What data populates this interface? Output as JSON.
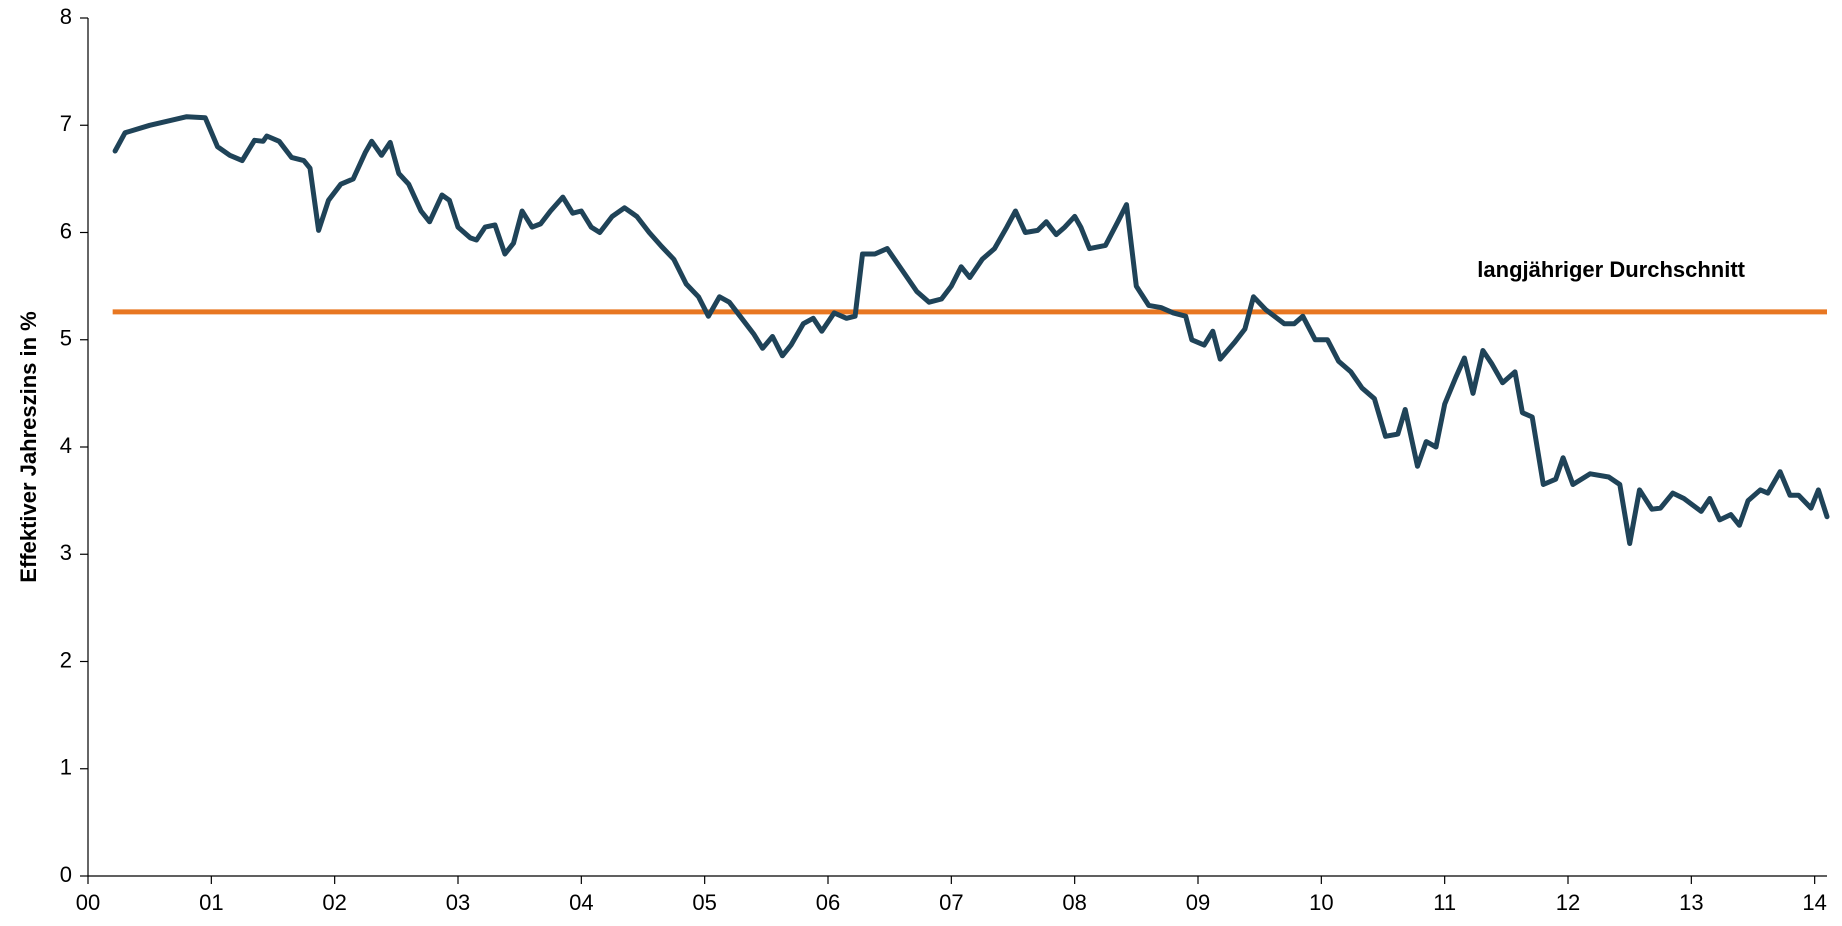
{
  "chart_data": {
    "type": "line",
    "ylabel": "Effektiver Jahreszins in %",
    "xlim": [
      0,
      14.1
    ],
    "ylim": [
      0,
      8
    ],
    "xticks": [
      {
        "value": 0,
        "label": "00"
      },
      {
        "value": 1,
        "label": "01"
      },
      {
        "value": 2,
        "label": "02"
      },
      {
        "value": 3,
        "label": "03"
      },
      {
        "value": 4,
        "label": "04"
      },
      {
        "value": 5,
        "label": "05"
      },
      {
        "value": 6,
        "label": "06"
      },
      {
        "value": 7,
        "label": "07"
      },
      {
        "value": 8,
        "label": "08"
      },
      {
        "value": 9,
        "label": "09"
      },
      {
        "value": 10,
        "label": "10"
      },
      {
        "value": 11,
        "label": "11"
      },
      {
        "value": 12,
        "label": "12"
      },
      {
        "value": 13,
        "label": "13"
      },
      {
        "value": 14,
        "label": "14"
      }
    ],
    "yticks": [
      0,
      1,
      2,
      3,
      4,
      5,
      6,
      7,
      8
    ],
    "grid": false,
    "series": [
      {
        "color": "#1f4358",
        "x": [
          0.22,
          0.3,
          0.5,
          0.8,
          0.95,
          1.05,
          1.15,
          1.25,
          1.35,
          1.42,
          1.45,
          1.55,
          1.65,
          1.75,
          1.8,
          1.87,
          1.95,
          2.05,
          2.15,
          2.25,
          2.3,
          2.38,
          2.45,
          2.52,
          2.6,
          2.7,
          2.77,
          2.87,
          2.93,
          3.0,
          3.1,
          3.15,
          3.22,
          3.3,
          3.38,
          3.45,
          3.52,
          3.6,
          3.67,
          3.75,
          3.85,
          3.93,
          4.0,
          4.08,
          4.15,
          4.25,
          4.35,
          4.45,
          4.55,
          4.65,
          4.75,
          4.85,
          4.95,
          5.03,
          5.12,
          5.2,
          5.3,
          5.4,
          5.47,
          5.55,
          5.63,
          5.7,
          5.8,
          5.88,
          5.95,
          6.05,
          6.15,
          6.22,
          6.28,
          6.38,
          6.48,
          6.6,
          6.72,
          6.82,
          6.92,
          7.0,
          7.08,
          7.15,
          7.25,
          7.35,
          7.45,
          7.52,
          7.6,
          7.7,
          7.77,
          7.85,
          7.92,
          8.0,
          8.05,
          8.12,
          8.25,
          8.35,
          8.42,
          8.5,
          8.6,
          8.7,
          8.8,
          8.9,
          8.95,
          9.05,
          9.12,
          9.18,
          9.3,
          9.38,
          9.45,
          9.55,
          9.7,
          9.78,
          9.85,
          9.95,
          10.05,
          10.14,
          10.24,
          10.33,
          10.43,
          10.52,
          10.62,
          10.68,
          10.78,
          10.85,
          10.93,
          11.0,
          11.09,
          11.16,
          11.23,
          11.31,
          11.38,
          11.47,
          11.57,
          11.63,
          11.71,
          11.8,
          11.9,
          11.96,
          12.04,
          12.18,
          12.33,
          12.42,
          12.5,
          12.58,
          12.68,
          12.75,
          12.85,
          12.94,
          13.08,
          13.15,
          13.23,
          13.32,
          13.39,
          13.46,
          13.56,
          13.62,
          13.72,
          13.8,
          13.87,
          13.97,
          14.03,
          14.1
        ],
        "values": [
          6.76,
          6.93,
          7.0,
          7.08,
          7.07,
          6.8,
          6.72,
          6.67,
          6.86,
          6.85,
          6.9,
          6.85,
          6.7,
          6.67,
          6.6,
          6.02,
          6.3,
          6.45,
          6.5,
          6.75,
          6.85,
          6.72,
          6.84,
          6.55,
          6.45,
          6.2,
          6.1,
          6.35,
          6.3,
          6.05,
          5.95,
          5.93,
          6.05,
          6.07,
          5.8,
          5.9,
          6.2,
          6.05,
          6.08,
          6.2,
          6.33,
          6.18,
          6.2,
          6.05,
          6.0,
          6.15,
          6.23,
          6.15,
          6.0,
          5.87,
          5.75,
          5.52,
          5.4,
          5.22,
          5.4,
          5.35,
          5.2,
          5.05,
          4.92,
          5.03,
          4.85,
          4.95,
          5.15,
          5.2,
          5.08,
          5.25,
          5.2,
          5.22,
          5.8,
          5.8,
          5.85,
          5.65,
          5.45,
          5.35,
          5.38,
          5.5,
          5.68,
          5.58,
          5.75,
          5.85,
          6.05,
          6.2,
          6.0,
          6.02,
          6.1,
          5.98,
          6.05,
          6.15,
          6.05,
          5.85,
          5.88,
          6.1,
          6.26,
          5.5,
          5.32,
          5.3,
          5.25,
          5.22,
          5.0,
          4.95,
          5.08,
          4.82,
          4.98,
          5.1,
          5.4,
          5.28,
          5.15,
          5.15,
          5.22,
          5.0,
          5.0,
          4.8,
          4.7,
          4.55,
          4.45,
          4.1,
          4.12,
          4.35,
          3.82,
          4.05,
          4.0,
          4.4,
          4.65,
          4.83,
          4.5,
          4.9,
          4.78,
          4.6,
          4.7,
          4.32,
          4.28,
          3.65,
          3.7,
          3.9,
          3.65,
          3.75,
          3.72,
          3.65,
          3.1,
          3.6,
          3.42,
          3.43,
          3.57,
          3.52,
          3.4,
          3.52,
          3.32,
          3.37,
          3.27,
          3.5,
          3.6,
          3.57,
          3.77,
          3.55,
          3.55,
          3.43,
          3.6,
          3.35
        ]
      }
    ],
    "reference_line": {
      "value": 5.26,
      "x": [
        0.2,
        14.1
      ],
      "color": "#e87722",
      "label": "langjähriger Durchschnitt"
    },
    "annotation": {
      "text": "langjähriger Durchschnitt",
      "x": 12.35,
      "y": 5.64
    }
  }
}
